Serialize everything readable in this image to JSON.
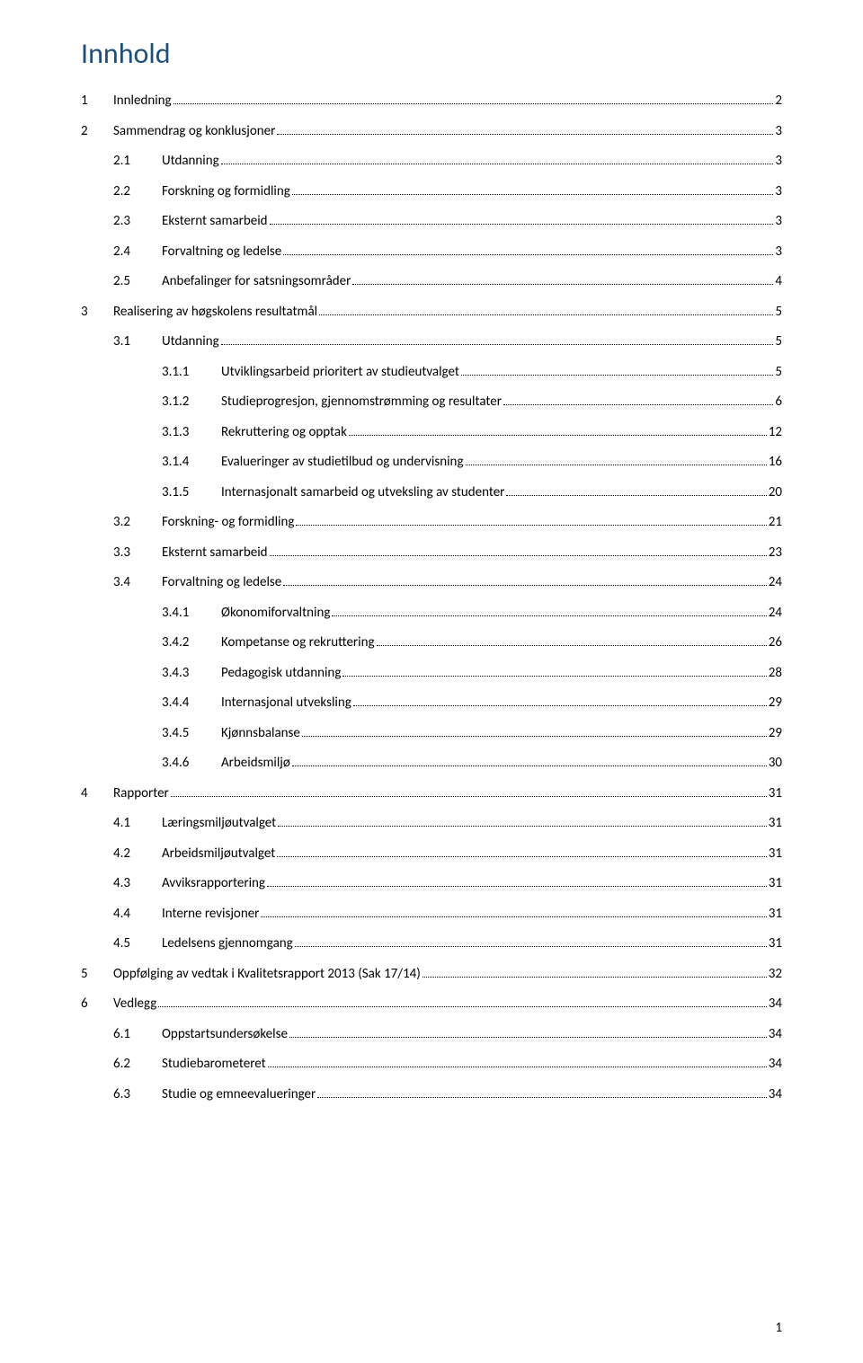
{
  "title": "Innhold",
  "pageNumber": "1",
  "colors": {
    "title": "#1f4e79",
    "text": "#000000",
    "background": "#ffffff"
  },
  "typography": {
    "title_fontsize": 32,
    "body_fontsize": 15,
    "font_family": "Calibri"
  },
  "toc": [
    {
      "level": 1,
      "num": "1",
      "label": "Innledning",
      "page": "2"
    },
    {
      "level": 1,
      "num": "2",
      "label": "Sammendrag og konklusjoner",
      "page": "3"
    },
    {
      "level": 2,
      "num": "2.1",
      "label": "Utdanning",
      "page": "3"
    },
    {
      "level": 2,
      "num": "2.2",
      "label": "Forskning og formidling",
      "page": "3"
    },
    {
      "level": 2,
      "num": "2.3",
      "label": "Eksternt samarbeid",
      "page": "3"
    },
    {
      "level": 2,
      "num": "2.4",
      "label": "Forvaltning og ledelse",
      "page": "3"
    },
    {
      "level": 2,
      "num": "2.5",
      "label": "Anbefalinger for satsningsområder",
      "page": "4"
    },
    {
      "level": 1,
      "num": "3",
      "label": "Realisering av høgskolens resultatmål",
      "page": "5"
    },
    {
      "level": 2,
      "num": "3.1",
      "label": "Utdanning",
      "page": "5"
    },
    {
      "level": 3,
      "num": "3.1.1",
      "label": "Utviklingsarbeid prioritert av studieutvalget",
      "page": "5"
    },
    {
      "level": 3,
      "num": "3.1.2",
      "label": "Studieprogresjon, gjennomstrømming og resultater",
      "page": "6"
    },
    {
      "level": 3,
      "num": "3.1.3",
      "label": "Rekruttering og opptak",
      "page": "12"
    },
    {
      "level": 3,
      "num": "3.1.4",
      "label": "Evalueringer av studietilbud og undervisning",
      "page": "16"
    },
    {
      "level": 3,
      "num": "3.1.5",
      "label": "Internasjonalt samarbeid og utveksling av studenter",
      "page": "20"
    },
    {
      "level": 2,
      "num": "3.2",
      "label": "Forskning- og formidling",
      "page": "21"
    },
    {
      "level": 2,
      "num": "3.3",
      "label": "Eksternt samarbeid",
      "page": "23"
    },
    {
      "level": 2,
      "num": "3.4",
      "label": "Forvaltning og ledelse",
      "page": "24"
    },
    {
      "level": 3,
      "num": "3.4.1",
      "label": "Økonomiforvaltning",
      "page": "24"
    },
    {
      "level": 3,
      "num": "3.4.2",
      "label": "Kompetanse og rekruttering",
      "page": "26"
    },
    {
      "level": 3,
      "num": "3.4.3",
      "label": "Pedagogisk utdanning",
      "page": "28"
    },
    {
      "level": 3,
      "num": "3.4.4",
      "label": "Internasjonal utveksling",
      "page": "29"
    },
    {
      "level": 3,
      "num": "3.4.5",
      "label": "Kjønnsbalanse",
      "page": "29"
    },
    {
      "level": 3,
      "num": "3.4.6",
      "label": "Arbeidsmiljø",
      "page": "30"
    },
    {
      "level": 1,
      "num": "4",
      "label": "Rapporter",
      "page": "31"
    },
    {
      "level": 2,
      "num": "4.1",
      "label": "Læringsmiljøutvalget",
      "page": "31"
    },
    {
      "level": 2,
      "num": "4.2",
      "label": "Arbeidsmiljøutvalget",
      "page": "31"
    },
    {
      "level": 2,
      "num": "4.3",
      "label": "Avviksrapportering",
      "page": "31"
    },
    {
      "level": 2,
      "num": "4.4",
      "label": "Interne revisjoner",
      "page": "31"
    },
    {
      "level": 2,
      "num": "4.5",
      "label": "Ledelsens gjennomgang",
      "page": "31"
    },
    {
      "level": 1,
      "num": "5",
      "label": "Oppfølging av vedtak i Kvalitetsrapport 2013 (Sak 17/14)",
      "page": "32"
    },
    {
      "level": 1,
      "num": "6",
      "label": "Vedlegg",
      "page": "34"
    },
    {
      "level": 2,
      "num": "6.1",
      "label": "Oppstartsundersøkelse",
      "page": "34"
    },
    {
      "level": 2,
      "num": "6.2",
      "label": "Studiebarometeret",
      "page": "34"
    },
    {
      "level": 2,
      "num": "6.3",
      "label": "Studie og emneevalueringer",
      "page": "34"
    }
  ]
}
